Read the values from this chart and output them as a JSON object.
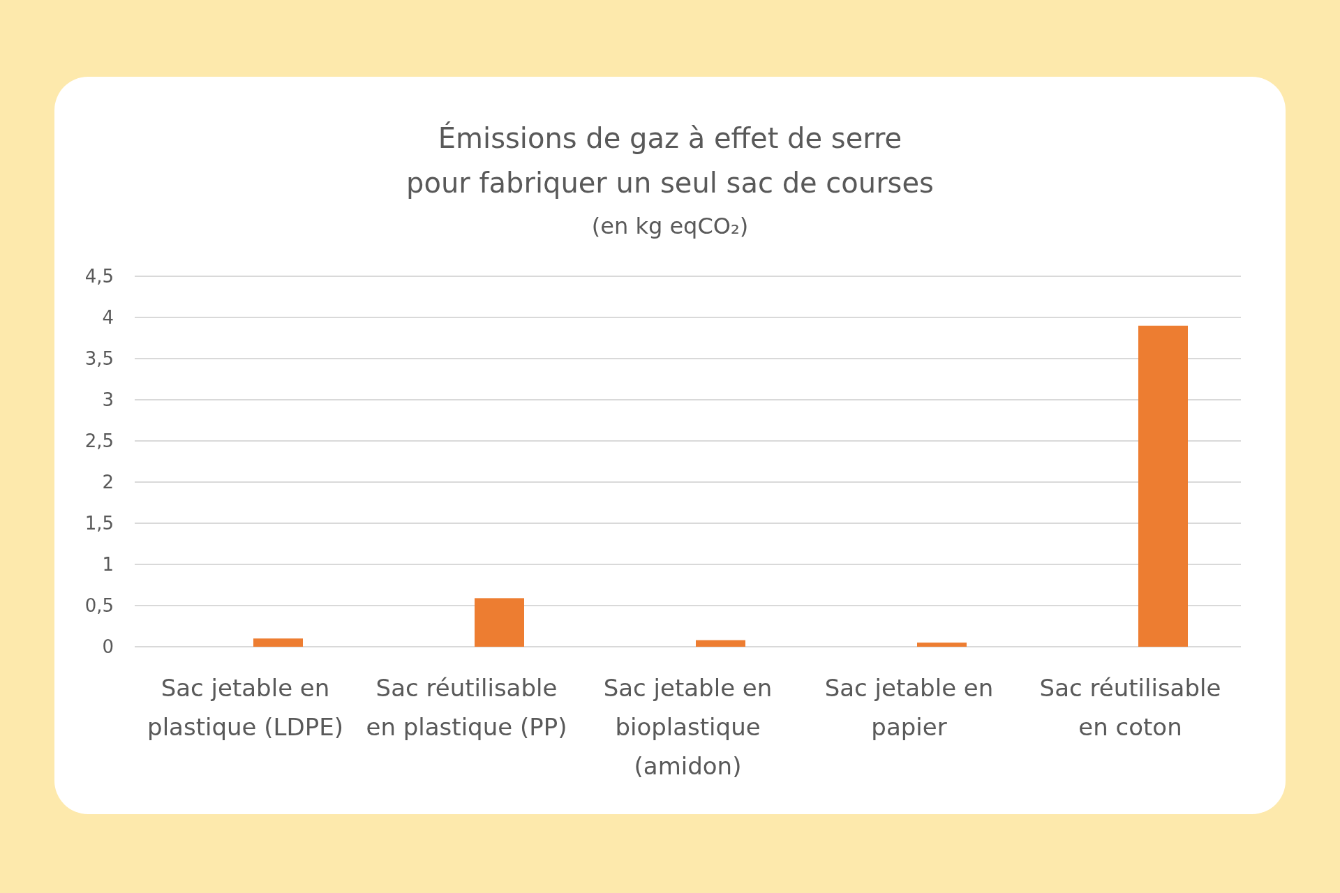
{
  "chart_data": {
    "type": "bar",
    "title": "Émissions de gaz à effet de serre\npour fabriquer un seul sac de courses",
    "subtitle": "(en kg eqCO₂)",
    "categories": [
      "Sac jetable en plastique (LDPE)",
      "Sac réutilisable en plastique (PP)",
      "Sac jetable en bioplastique (amidon)",
      "Sac jetable en papier",
      "Sac réutilisable en coton"
    ],
    "values": [
      0.1,
      0.59,
      0.08,
      0.05,
      3.9
    ],
    "color": "#ed7d31",
    "ylim": [
      0,
      4.5
    ],
    "yticks": [
      {
        "value": 0,
        "label": "0"
      },
      {
        "value": 0.5,
        "label": "0,5"
      },
      {
        "value": 1,
        "label": "1"
      },
      {
        "value": 1.5,
        "label": "1,5"
      },
      {
        "value": 2,
        "label": "2"
      },
      {
        "value": 2.5,
        "label": "2,5"
      },
      {
        "value": 3,
        "label": "3"
      },
      {
        "value": 3.5,
        "label": "3,5"
      },
      {
        "value": 4,
        "label": "4"
      },
      {
        "value": 4.5,
        "label": "4,5"
      }
    ],
    "grid": "y"
  }
}
